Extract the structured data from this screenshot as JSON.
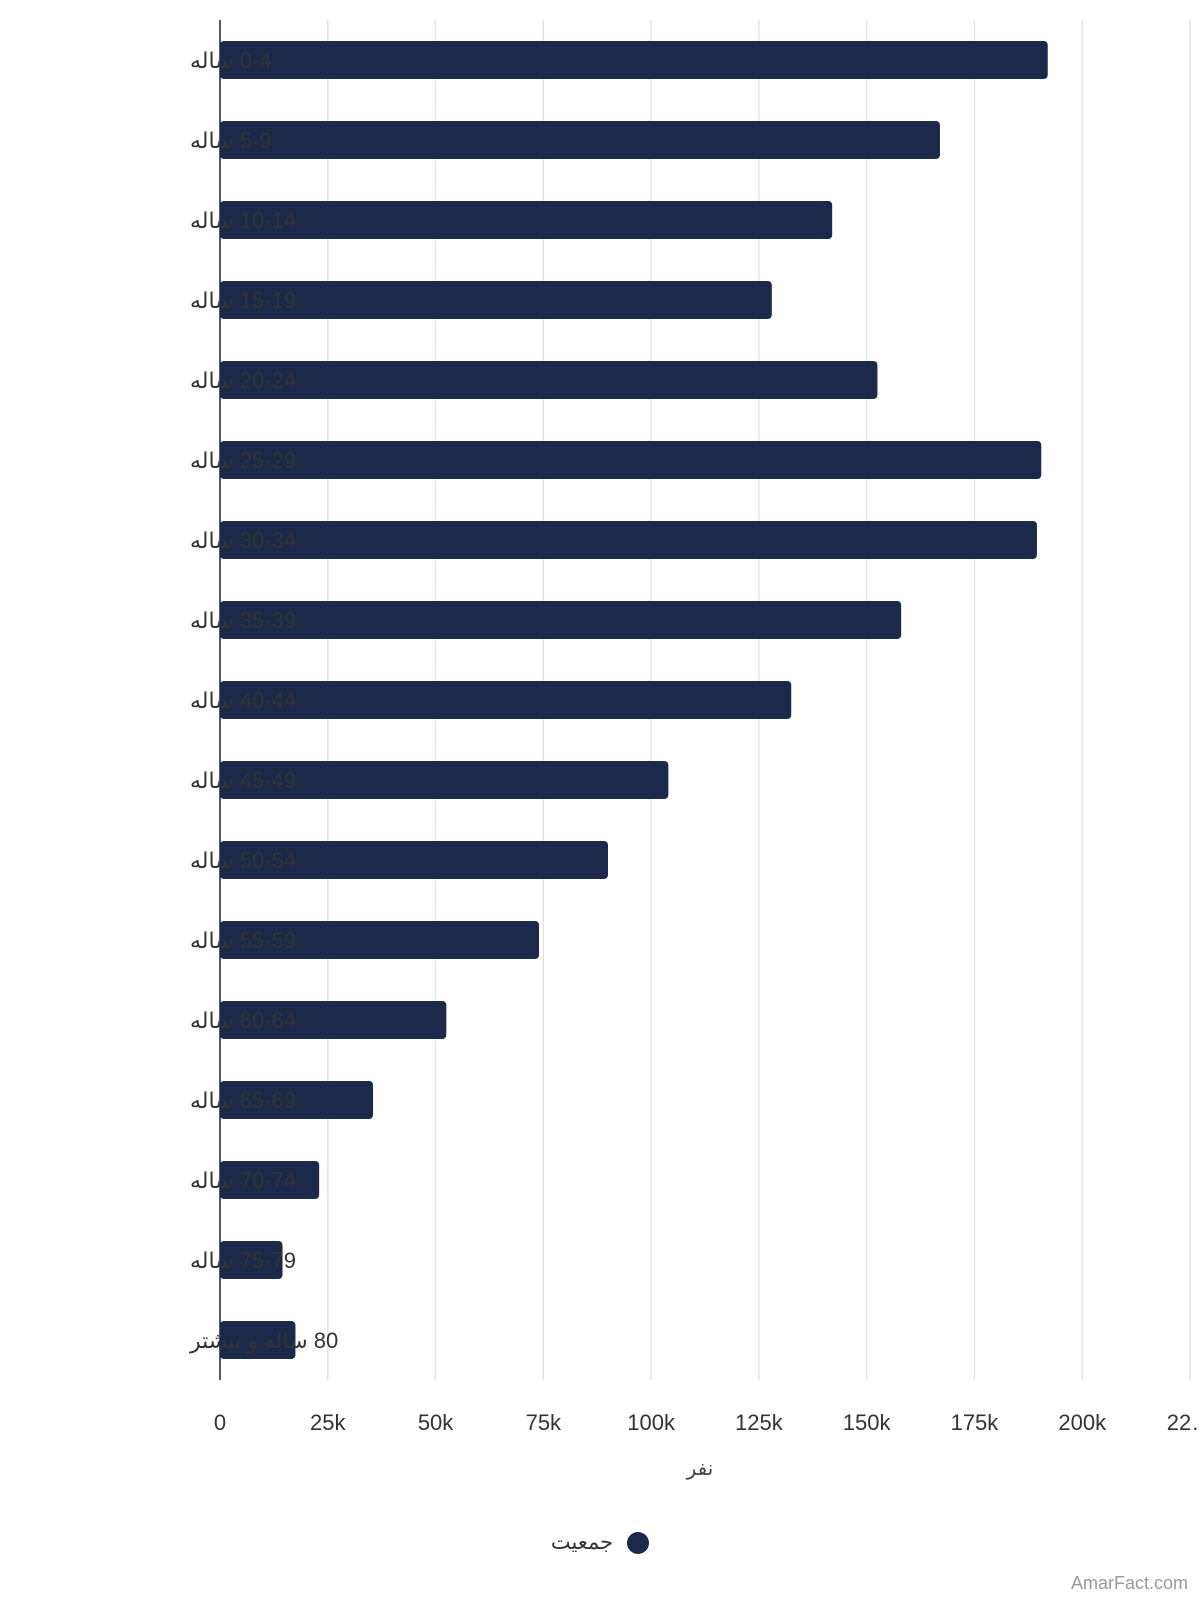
{
  "colors": {
    "bar": "#1b2a4a",
    "grid": "#e3e3e3"
  },
  "chart_data": {
    "type": "bar",
    "orientation": "horizontal",
    "categories": [
      "0-4 ساله",
      "5-9 ساله",
      "10-14 ساله",
      "15-19 ساله",
      "20-24 ساله",
      "25-29 ساله",
      "30-34 ساله",
      "35-39 ساله",
      "40-44 ساله",
      "45-49 ساله",
      "50-54 ساله",
      "55-59 ساله",
      "60-64 ساله",
      "65-69 ساله",
      "70-74 ساله",
      "75-79 ساله",
      "80 ساله و بیشتر"
    ],
    "series": [
      {
        "name": "جمعیت",
        "values": [
          192000,
          167000,
          142000,
          128000,
          152500,
          190500,
          189500,
          158000,
          132500,
          104000,
          90000,
          74000,
          52500,
          35500,
          23000,
          14500,
          17500
        ]
      }
    ],
    "xlabel": "نفر",
    "ylabel": "",
    "xlim": [
      0,
      225000
    ],
    "x_ticks": [
      "0",
      "25k",
      "50k",
      "75k",
      "100k",
      "125k",
      "150k",
      "175k",
      "200k",
      "22…"
    ],
    "grid": true,
    "legend_position": "bottom"
  },
  "legend": {
    "label": "جمعیت"
  },
  "watermark": "AmarFact.com"
}
